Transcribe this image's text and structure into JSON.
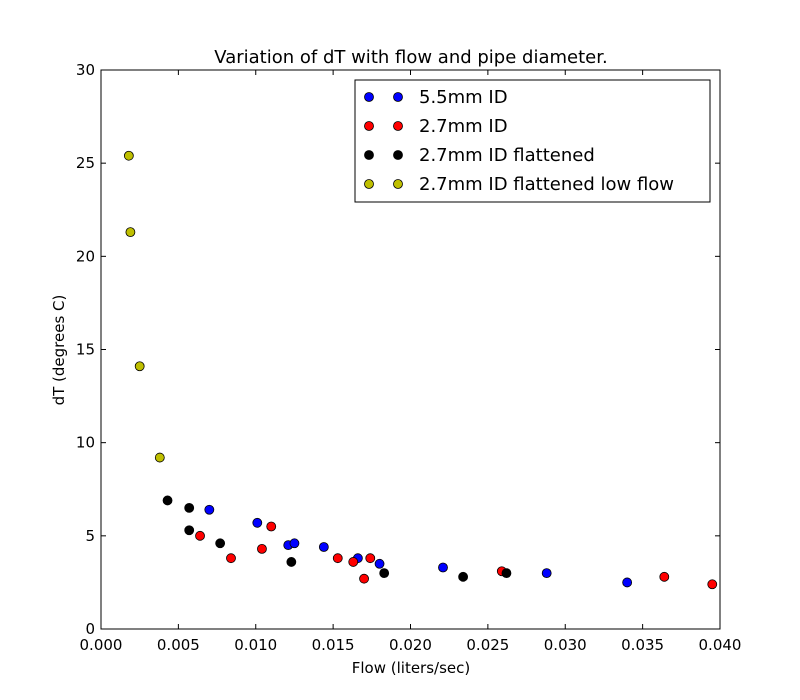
{
  "chart_data": {
    "type": "scatter",
    "title": "Variation of dT with flow and pipe diameter.",
    "xlabel": "Flow (liters/sec)",
    "ylabel": "dT (degrees C)",
    "xlim": [
      0.0,
      0.04
    ],
    "ylim": [
      0,
      30
    ],
    "x_ticks": [
      "0.000",
      "0.005",
      "0.010",
      "0.015",
      "0.020",
      "0.025",
      "0.030",
      "0.035",
      "0.040"
    ],
    "y_ticks": [
      "0",
      "5",
      "10",
      "15",
      "20",
      "25",
      "30"
    ],
    "grid": false,
    "legend_position": "top-right",
    "series": [
      {
        "name": "5.5mm ID",
        "color": "#0000ff",
        "points": [
          [
            0.007,
            6.4
          ],
          [
            0.0101,
            5.7
          ],
          [
            0.0121,
            4.5
          ],
          [
            0.0125,
            4.6
          ],
          [
            0.0144,
            4.4
          ],
          [
            0.0166,
            3.8
          ],
          [
            0.018,
            3.5
          ],
          [
            0.0221,
            3.3
          ],
          [
            0.0288,
            3.0
          ],
          [
            0.034,
            2.5
          ]
        ]
      },
      {
        "name": "2.7mm ID",
        "color": "#ff0000",
        "points": [
          [
            0.0064,
            5.0
          ],
          [
            0.0084,
            3.8
          ],
          [
            0.0104,
            4.3
          ],
          [
            0.011,
            5.5
          ],
          [
            0.0153,
            3.8
          ],
          [
            0.0163,
            3.6
          ],
          [
            0.017,
            2.7
          ],
          [
            0.0174,
            3.8
          ],
          [
            0.0259,
            3.1
          ],
          [
            0.0364,
            2.8
          ],
          [
            0.0395,
            2.4
          ]
        ]
      },
      {
        "name": "2.7mm ID flattened",
        "color": "#000000",
        "points": [
          [
            0.0043,
            6.9
          ],
          [
            0.0057,
            6.5
          ],
          [
            0.0057,
            5.3
          ],
          [
            0.0077,
            4.6
          ],
          [
            0.0123,
            3.6
          ],
          [
            0.0183,
            3.0
          ],
          [
            0.0234,
            2.8
          ],
          [
            0.0262,
            3.0
          ]
        ]
      },
      {
        "name": "2.7mm ID flattened low flow",
        "color": "#bfbf00",
        "points": [
          [
            0.0018,
            25.4
          ],
          [
            0.0019,
            21.3
          ],
          [
            0.0025,
            14.1
          ],
          [
            0.0038,
            9.2
          ]
        ]
      }
    ]
  }
}
